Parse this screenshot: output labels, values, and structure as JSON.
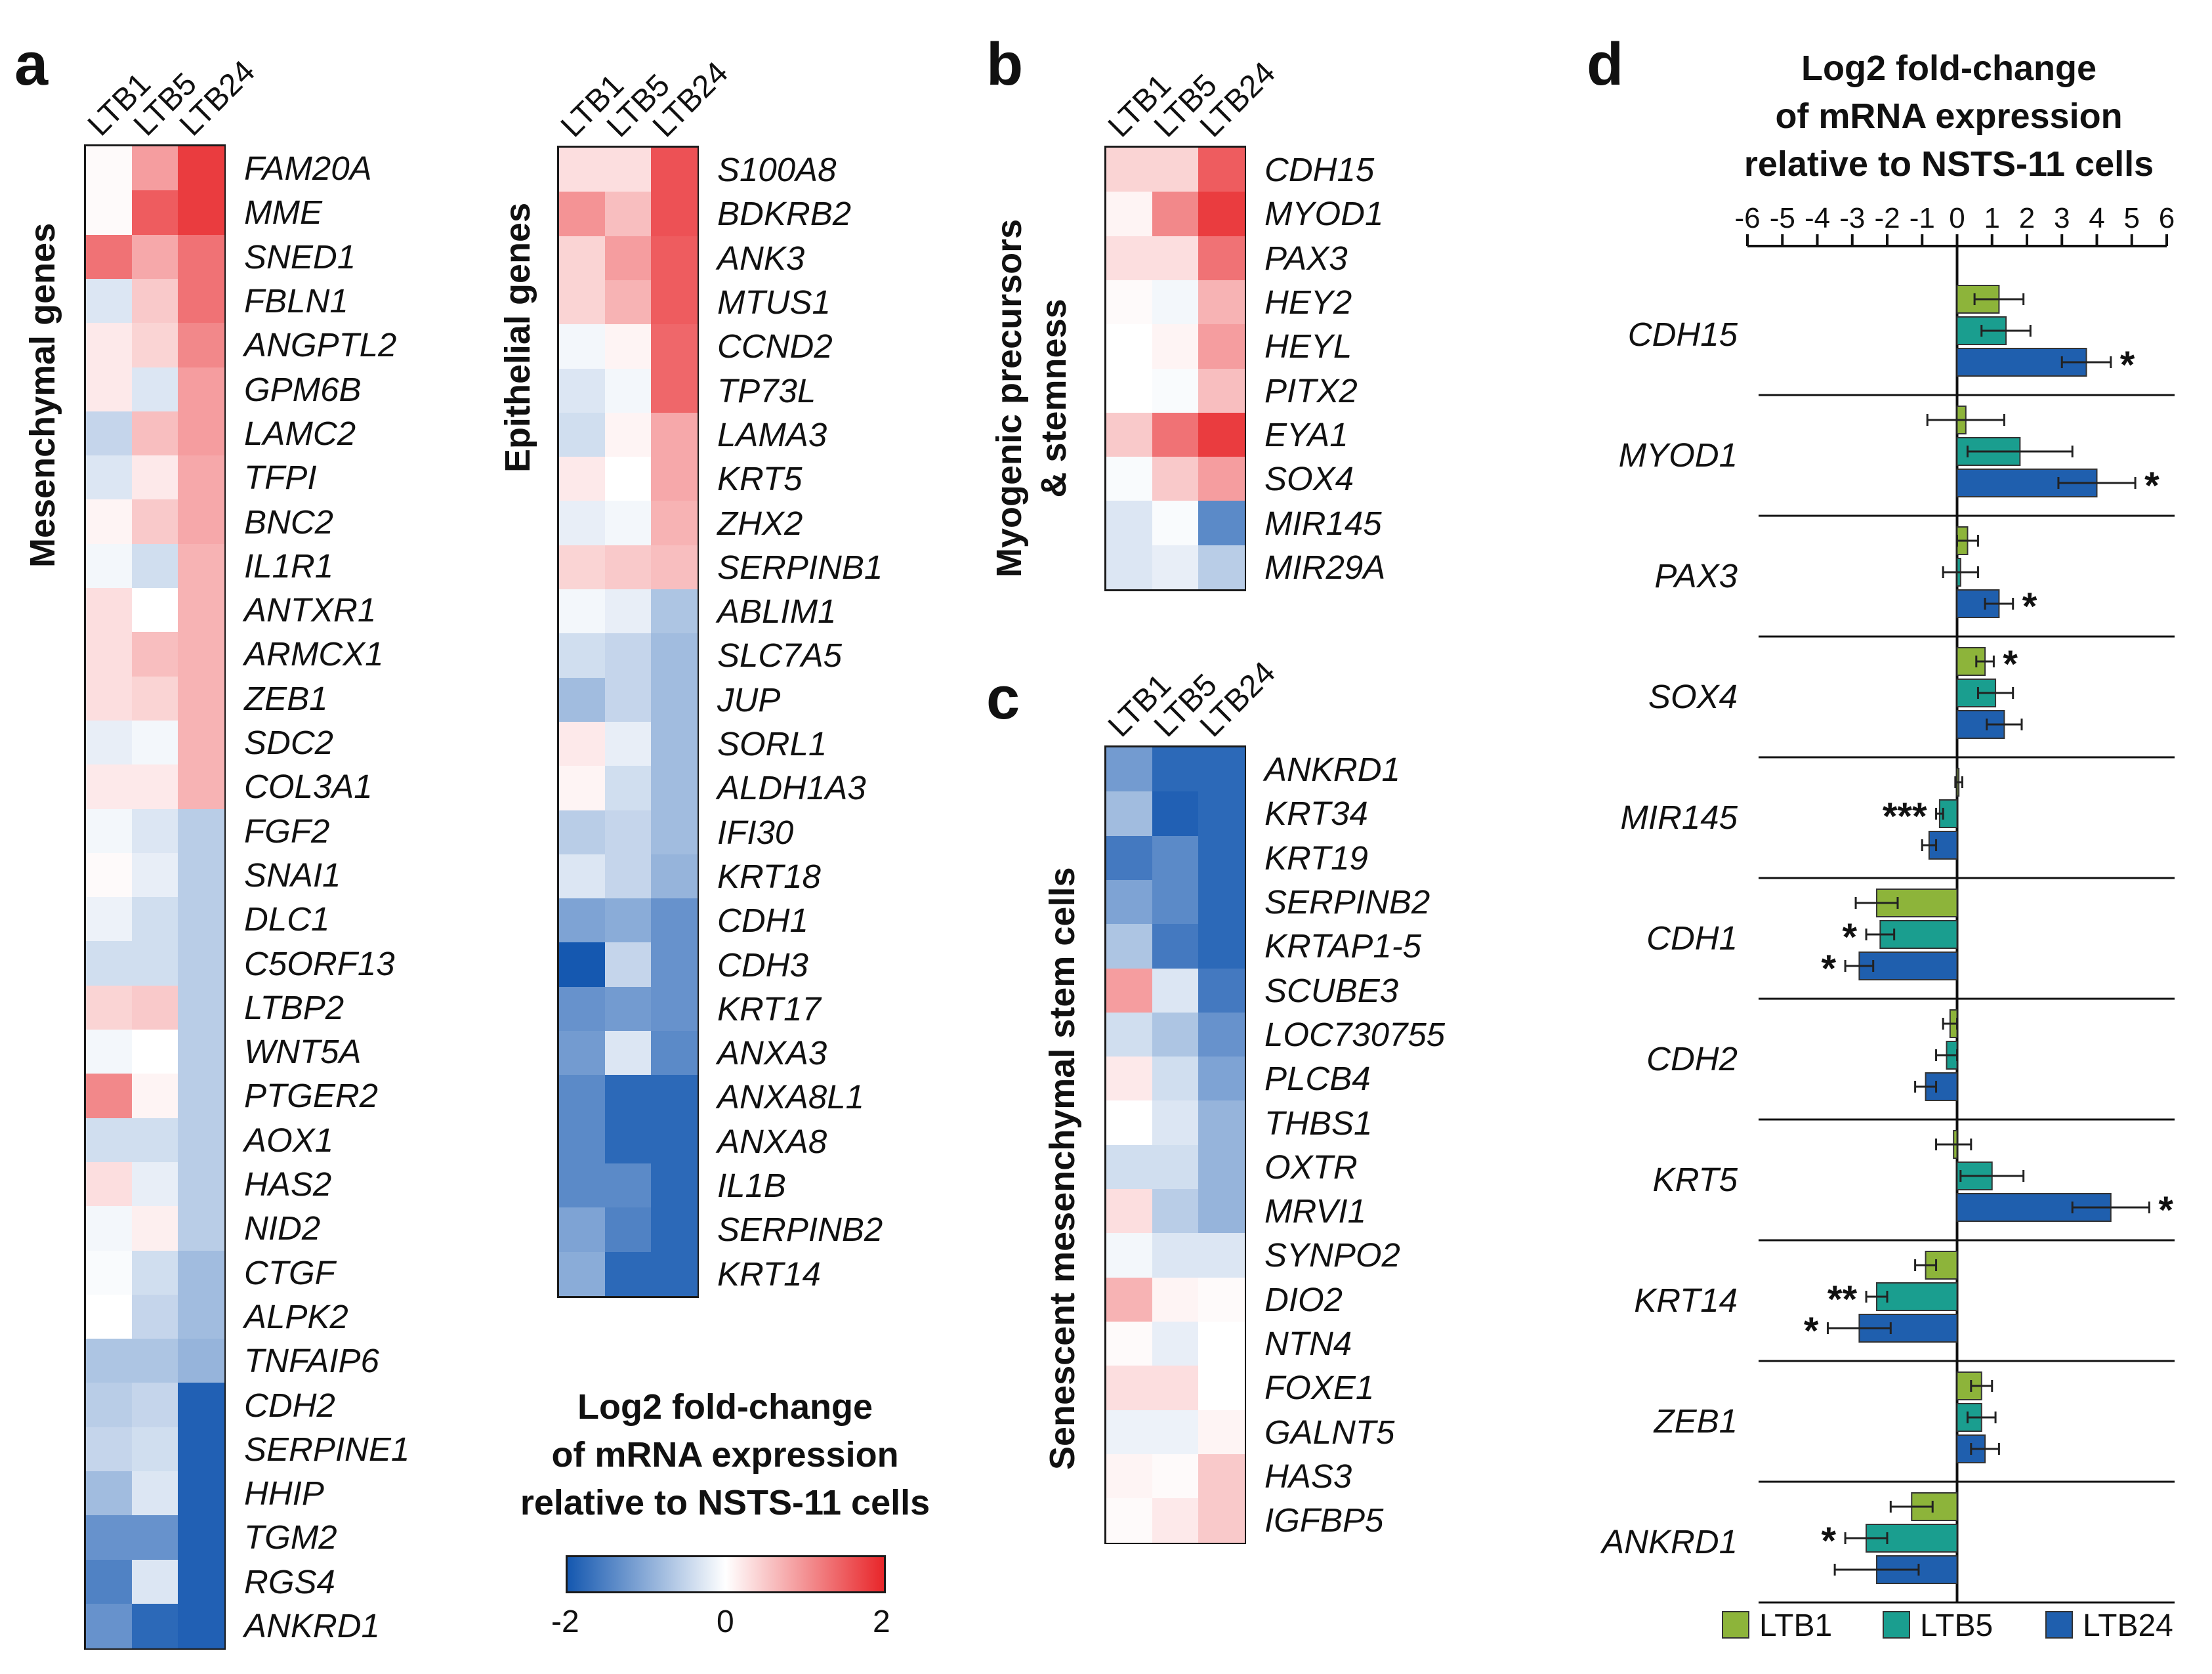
{
  "panels": {
    "a": "a",
    "b": "b",
    "c": "c",
    "d": "d"
  },
  "columns": [
    "LTB1",
    "LTB5",
    "LTB24"
  ],
  "heatmap_titles": {
    "mesenchymal": "Mesenchymal genes",
    "epithelial": "Epithelial genes",
    "myogenic_line1": "Myogenic precursors",
    "myogenic_line2": "& stemness",
    "senescent": "Senescent mesenchymal stem cells"
  },
  "legend": {
    "title_line1": "Log2 fold-change",
    "title_line2": "of mRNA expression",
    "title_line3": "relative to NSTS-11 cells",
    "min_label": "-2",
    "mid_label": "0",
    "max_label": "2",
    "colors": {
      "low": "#1558b0",
      "mid": "#ffffff",
      "high": "#e8262a"
    }
  },
  "bar_chart_title": {
    "line1": "Log2 fold-change",
    "line2": "of mRNA expression",
    "line3": "relative to NSTS-11 cells"
  },
  "chart_data": [
    {
      "type": "heatmap",
      "panel": "a",
      "title": "Mesenchymal genes",
      "columns": [
        "LTB1",
        "LTB5",
        "LTB24"
      ],
      "value_range": [
        -2,
        2
      ],
      "rows": [
        {
          "gene": "FAM20A",
          "values": [
            0.05,
            0.9,
            1.8
          ]
        },
        {
          "gene": "MME",
          "values": [
            0.05,
            1.5,
            1.8
          ]
        },
        {
          "gene": "SNED1",
          "values": [
            1.3,
            0.8,
            1.3
          ]
        },
        {
          "gene": "FBLN1",
          "values": [
            -0.3,
            0.5,
            1.3
          ]
        },
        {
          "gene": "ANGPTL2",
          "values": [
            0.2,
            0.4,
            1.1
          ]
        },
        {
          "gene": "GPM6B",
          "values": [
            0.2,
            -0.3,
            0.9
          ]
        },
        {
          "gene": "LAMC2",
          "values": [
            -0.5,
            0.6,
            0.9
          ]
        },
        {
          "gene": "TFPI",
          "values": [
            -0.3,
            0.2,
            0.8
          ]
        },
        {
          "gene": "BNC2",
          "values": [
            0.1,
            0.5,
            0.8
          ]
        },
        {
          "gene": "IL1R1",
          "values": [
            -0.1,
            -0.4,
            0.7
          ]
        },
        {
          "gene": "ANTXR1",
          "values": [
            0.3,
            0.0,
            0.7
          ]
        },
        {
          "gene": "ARMCX1",
          "values": [
            0.3,
            0.6,
            0.7
          ]
        },
        {
          "gene": "ZEB1",
          "values": [
            0.3,
            0.4,
            0.7
          ]
        },
        {
          "gene": "SDC2",
          "values": [
            -0.2,
            -0.1,
            0.7
          ]
        },
        {
          "gene": "COL3A1",
          "values": [
            0.2,
            0.2,
            0.7
          ]
        },
        {
          "gene": "FGF2",
          "values": [
            -0.1,
            -0.3,
            -0.6
          ]
        },
        {
          "gene": "SNAI1",
          "values": [
            0.05,
            -0.2,
            -0.6
          ]
        },
        {
          "gene": "DLC1",
          "values": [
            -0.15,
            -0.4,
            -0.6
          ]
        },
        {
          "gene": "C5ORF13",
          "values": [
            -0.4,
            -0.4,
            -0.6
          ]
        },
        {
          "gene": "LTBP2",
          "values": [
            0.4,
            0.5,
            -0.6
          ]
        },
        {
          "gene": "WNT5A",
          "values": [
            -0.1,
            0.0,
            -0.6
          ]
        },
        {
          "gene": "PTGER2",
          "values": [
            1.1,
            0.1,
            -0.6
          ]
        },
        {
          "gene": "AOX1",
          "values": [
            -0.4,
            -0.4,
            -0.6
          ]
        },
        {
          "gene": "HAS2",
          "values": [
            0.3,
            -0.2,
            -0.6
          ]
        },
        {
          "gene": "NID2",
          "values": [
            -0.1,
            0.15,
            -0.6
          ]
        },
        {
          "gene": "CTGF",
          "values": [
            -0.05,
            -0.4,
            -0.8
          ]
        },
        {
          "gene": "ALPK2",
          "values": [
            0.0,
            -0.5,
            -0.8
          ]
        },
        {
          "gene": "TNFAIP6",
          "values": [
            -0.7,
            -0.7,
            -0.9
          ]
        },
        {
          "gene": "CDH2",
          "values": [
            -0.6,
            -0.5,
            -1.9
          ]
        },
        {
          "gene": "SERPINE1",
          "values": [
            -0.5,
            -0.4,
            -1.9
          ]
        },
        {
          "gene": "HHIP",
          "values": [
            -0.8,
            -0.3,
            -1.9
          ]
        },
        {
          "gene": "TGM2",
          "values": [
            -1.3,
            -1.3,
            -1.9
          ]
        },
        {
          "gene": "RGS4",
          "values": [
            -1.5,
            -0.3,
            -1.9
          ]
        },
        {
          "gene": "ANKRD1",
          "values": [
            -1.3,
            -1.8,
            -1.9
          ]
        }
      ]
    },
    {
      "type": "heatmap",
      "panel": "a",
      "title": "Epithelial genes",
      "columns": [
        "LTB1",
        "LTB5",
        "LTB24"
      ],
      "value_range": [
        -2,
        2
      ],
      "rows": [
        {
          "gene": "S100A8",
          "values": [
            0.3,
            0.3,
            1.6
          ]
        },
        {
          "gene": "BDKRB2",
          "values": [
            1.0,
            0.6,
            1.6
          ]
        },
        {
          "gene": "ANK3",
          "values": [
            0.4,
            0.9,
            1.5
          ]
        },
        {
          "gene": "MTUS1",
          "values": [
            0.4,
            0.7,
            1.5
          ]
        },
        {
          "gene": "CCND2",
          "values": [
            -0.1,
            0.1,
            1.4
          ]
        },
        {
          "gene": "TP73L",
          "values": [
            -0.3,
            -0.1,
            1.4
          ]
        },
        {
          "gene": "LAMA3",
          "values": [
            -0.4,
            0.1,
            0.8
          ]
        },
        {
          "gene": "KRT5",
          "values": [
            0.2,
            0.0,
            0.8
          ]
        },
        {
          "gene": "ZHX2",
          "values": [
            -0.2,
            -0.1,
            0.7
          ]
        },
        {
          "gene": "SERPINB1",
          "values": [
            0.4,
            0.5,
            0.6
          ]
        },
        {
          "gene": "ABLIM1",
          "values": [
            -0.1,
            -0.2,
            -0.7
          ]
        },
        {
          "gene": "SLC7A5",
          "values": [
            -0.4,
            -0.5,
            -0.8
          ]
        },
        {
          "gene": "JUP",
          "values": [
            -0.8,
            -0.5,
            -0.8
          ]
        },
        {
          "gene": "SORL1",
          "values": [
            0.2,
            -0.2,
            -0.8
          ]
        },
        {
          "gene": "ALDH1A3",
          "values": [
            0.1,
            -0.4,
            -0.8
          ]
        },
        {
          "gene": "IFI30",
          "values": [
            -0.6,
            -0.5,
            -0.8
          ]
        },
        {
          "gene": "KRT18",
          "values": [
            -0.3,
            -0.5,
            -0.9
          ]
        },
        {
          "gene": "CDH1",
          "values": [
            -1.1,
            -1.0,
            -1.3
          ]
        },
        {
          "gene": "CDH3",
          "values": [
            -2.0,
            -0.5,
            -1.3
          ]
        },
        {
          "gene": "KRT17",
          "values": [
            -1.3,
            -1.2,
            -1.3
          ]
        },
        {
          "gene": "ANXA3",
          "values": [
            -1.2,
            -0.3,
            -1.4
          ]
        },
        {
          "gene": "ANXA8L1",
          "values": [
            -1.4,
            -1.8,
            -1.8
          ]
        },
        {
          "gene": "ANXA8",
          "values": [
            -1.4,
            -1.8,
            -1.8
          ]
        },
        {
          "gene": "IL1B",
          "values": [
            -1.4,
            -1.4,
            -1.8
          ]
        },
        {
          "gene": "SERPINB2",
          "values": [
            -1.1,
            -1.5,
            -1.8
          ]
        },
        {
          "gene": "KRT14",
          "values": [
            -1.0,
            -1.8,
            -1.8
          ]
        }
      ]
    },
    {
      "type": "heatmap",
      "panel": "b",
      "title": "Myogenic precursors & stemness",
      "columns": [
        "LTB1",
        "LTB5",
        "LTB24"
      ],
      "value_range": [
        -2,
        2
      ],
      "rows": [
        {
          "gene": "CDH15",
          "values": [
            0.4,
            0.4,
            1.5
          ]
        },
        {
          "gene": "MYOD1",
          "values": [
            0.1,
            1.1,
            1.8
          ]
        },
        {
          "gene": "PAX3",
          "values": [
            0.3,
            0.3,
            1.3
          ]
        },
        {
          "gene": "HEY2",
          "values": [
            0.05,
            -0.1,
            0.7
          ]
        },
        {
          "gene": "HEYL",
          "values": [
            0.0,
            0.1,
            0.9
          ]
        },
        {
          "gene": "PITX2",
          "values": [
            0.0,
            -0.05,
            0.6
          ]
        },
        {
          "gene": "EYA1",
          "values": [
            0.5,
            1.3,
            1.8
          ]
        },
        {
          "gene": "SOX4",
          "values": [
            -0.05,
            0.5,
            0.9
          ]
        },
        {
          "gene": "MIR145",
          "values": [
            -0.3,
            -0.05,
            -1.4
          ]
        },
        {
          "gene": "MIR29A",
          "values": [
            -0.3,
            -0.2,
            -0.6
          ]
        }
      ]
    },
    {
      "type": "heatmap",
      "panel": "c",
      "title": "Senescent mesenchymal stem cells",
      "columns": [
        "LTB1",
        "LTB5",
        "LTB24"
      ],
      "value_range": [
        -2,
        2
      ],
      "rows": [
        {
          "gene": "ANKRD1",
          "values": [
            -1.2,
            -1.8,
            -1.8
          ]
        },
        {
          "gene": "KRT34",
          "values": [
            -0.8,
            -1.9,
            -1.8
          ]
        },
        {
          "gene": "KRT19",
          "values": [
            -1.6,
            -1.4,
            -1.8
          ]
        },
        {
          "gene": "SERPINB2",
          "values": [
            -1.1,
            -1.4,
            -1.8
          ]
        },
        {
          "gene": "KRTAP1-5",
          "values": [
            -0.7,
            -1.6,
            -1.8
          ]
        },
        {
          "gene": "SCUBE3",
          "values": [
            0.9,
            -0.3,
            -1.6
          ]
        },
        {
          "gene": "LOC730755",
          "values": [
            -0.4,
            -0.7,
            -1.3
          ]
        },
        {
          "gene": "PLCB4",
          "values": [
            0.2,
            -0.4,
            -1.1
          ]
        },
        {
          "gene": "THBS1",
          "values": [
            0.0,
            -0.3,
            -0.9
          ]
        },
        {
          "gene": "OXTR",
          "values": [
            -0.4,
            -0.4,
            -0.9
          ]
        },
        {
          "gene": "MRVI1",
          "values": [
            0.3,
            -0.6,
            -0.9
          ]
        },
        {
          "gene": "SYNPO2",
          "values": [
            -0.1,
            -0.3,
            -0.3
          ]
        },
        {
          "gene": "DIO2",
          "values": [
            0.7,
            0.1,
            0.05
          ]
        },
        {
          "gene": "NTN4",
          "values": [
            0.05,
            -0.2,
            0.0
          ]
        },
        {
          "gene": "FOXE1",
          "values": [
            0.3,
            0.3,
            0.0
          ]
        },
        {
          "gene": "GALNT5",
          "values": [
            -0.15,
            -0.15,
            0.1
          ]
        },
        {
          "gene": "HAS3",
          "values": [
            0.1,
            0.05,
            0.5
          ]
        },
        {
          "gene": "IGFBP5",
          "values": [
            0.05,
            0.2,
            0.5
          ]
        }
      ]
    },
    {
      "type": "bar",
      "orientation": "horizontal",
      "panel": "d",
      "title": "Log2 fold-change of mRNA expression relative to NSTS-11 cells",
      "xlim": [
        -6,
        6
      ],
      "x_ticks": [
        -6,
        -5,
        -4,
        -3,
        -2,
        -1,
        0,
        1,
        2,
        3,
        4,
        5,
        6
      ],
      "legend": "bottom",
      "series": [
        {
          "name": "LTB1",
          "color": "#8db43a"
        },
        {
          "name": "LTB5",
          "color": "#1a9e8f"
        },
        {
          "name": "LTB24",
          "color": "#1f5fae"
        }
      ],
      "groups": [
        {
          "gene": "CDH15",
          "values": [
            1.2,
            1.4,
            3.7
          ],
          "errors": [
            0.7,
            0.7,
            0.7
          ],
          "sig": [
            "",
            "",
            "*"
          ]
        },
        {
          "gene": "MYOD1",
          "values": [
            0.25,
            1.8,
            4.0
          ],
          "errors": [
            1.1,
            1.5,
            1.1
          ],
          "sig": [
            "",
            "",
            "*"
          ]
        },
        {
          "gene": "PAX3",
          "values": [
            0.3,
            0.1,
            1.2
          ],
          "errors": [
            0.3,
            0.5,
            0.4
          ],
          "sig": [
            "",
            "",
            "*"
          ]
        },
        {
          "gene": "SOX4",
          "values": [
            0.8,
            1.1,
            1.35
          ],
          "errors": [
            0.25,
            0.5,
            0.5
          ],
          "sig": [
            "*",
            "",
            ""
          ]
        },
        {
          "gene": "MIR145",
          "values": [
            0.05,
            -0.5,
            -0.8
          ],
          "errors": [
            0.1,
            0.1,
            0.2
          ],
          "sig": [
            "",
            "***",
            ""
          ]
        },
        {
          "gene": "CDH1",
          "values": [
            -2.3,
            -2.2,
            -2.8
          ],
          "errors": [
            0.6,
            0.4,
            0.4
          ],
          "sig": [
            "",
            "*",
            "*"
          ]
        },
        {
          "gene": "CDH2",
          "values": [
            -0.2,
            -0.3,
            -0.9
          ],
          "errors": [
            0.2,
            0.3,
            0.3
          ],
          "sig": [
            "",
            "",
            ""
          ]
        },
        {
          "gene": "KRT5",
          "values": [
            -0.1,
            1.0,
            4.4
          ],
          "errors": [
            0.5,
            0.9,
            1.1
          ],
          "sig": [
            "",
            "",
            "*"
          ]
        },
        {
          "gene": "KRT14",
          "values": [
            -0.9,
            -2.3,
            -2.8
          ],
          "errors": [
            0.3,
            0.3,
            0.9
          ],
          "sig": [
            "",
            "**",
            "*"
          ]
        },
        {
          "gene": "ZEB1",
          "values": [
            0.7,
            0.7,
            0.8
          ],
          "errors": [
            0.3,
            0.4,
            0.4
          ],
          "sig": [
            "",
            "",
            ""
          ]
        },
        {
          "gene": "ANKRD1",
          "values": [
            -1.3,
            -2.6,
            -2.3
          ],
          "errors": [
            0.6,
            0.6,
            1.2
          ],
          "sig": [
            "",
            "*",
            ""
          ]
        }
      ]
    }
  ]
}
